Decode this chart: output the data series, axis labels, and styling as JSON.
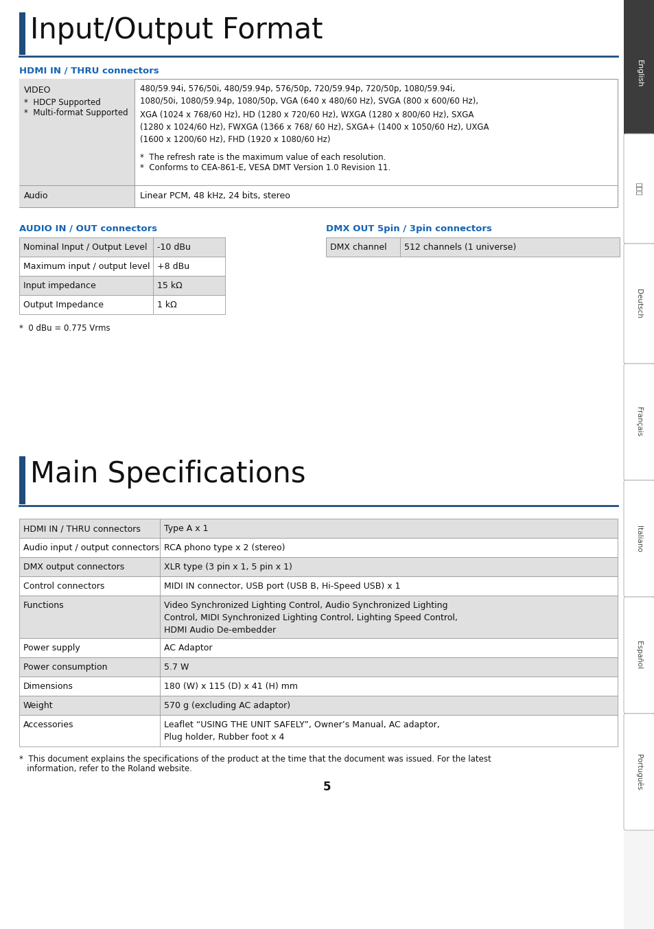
{
  "title1": "Input/Output Format",
  "title2": "Main Specifications",
  "section1_heading": "HDMI IN / THRU connectors",
  "section2_heading": "AUDIO IN / OUT connectors",
  "section3_heading": "DMX OUT 5pin / 3pin connectors",
  "audio_io_rows": [
    [
      "Nominal Input / Output Level",
      "-10 dBu"
    ],
    [
      "Maximum input / output level",
      "+8 dBu"
    ],
    [
      "Input impedance",
      "15 kΩ"
    ],
    [
      "Output Impedance",
      "1 kΩ"
    ]
  ],
  "dmx_rows": [
    [
      "DMX channel",
      "512 channels (1 universe)"
    ]
  ],
  "audio_footnote": "*  0 dBu = 0.775 Vrms",
  "main_specs": [
    [
      "HDMI IN / THRU connectors",
      "Type A x 1"
    ],
    [
      "Audio input / output connectors",
      "RCA phono type x 2 (stereo)"
    ],
    [
      "DMX output connectors",
      "XLR type (3 pin x 1, 5 pin x 1)"
    ],
    [
      "Control connectors",
      "MIDI IN connector, USB port (USB B, Hi-Speed USB) x 1"
    ],
    [
      "Functions",
      "Video Synchronized Lighting Control, Audio Synchronized Lighting\nControl, MIDI Synchronized Lighting Control, Lighting Speed Control,\nHDMI Audio De-embedder"
    ],
    [
      "Power supply",
      "AC Adaptor"
    ],
    [
      "Power consumption",
      "5.7 W"
    ],
    [
      "Dimensions",
      "180 (W) x 115 (D) x 41 (H) mm"
    ],
    [
      "Weight",
      "570 g (excluding AC adaptor)"
    ],
    [
      "Accessories",
      "Leaflet “USING THE UNIT SAFELY”, Owner’s Manual, AC adaptor,\nPlug holder, Rubber foot x 4"
    ]
  ],
  "footnote_line1": "*  This document explains the specifications of the product at the time that the document was issued. For the latest",
  "footnote_line2": "   information, refer to the Roland website.",
  "page_num": "5",
  "sidebar_labels": [
    "English",
    "日本語",
    "Deutsch",
    "Français",
    "Italiano",
    "Español",
    "Português"
  ],
  "blue_dark": "#1e4d7b",
  "blue_heading": "#1464b4",
  "light_gray": "#e0e0e0",
  "cell_bg_alt": "#f0f0f0",
  "border_color": "#999999",
  "dark_sidebar": "#3c3c3c",
  "white": "#ffffff",
  "text_black": "#111111"
}
